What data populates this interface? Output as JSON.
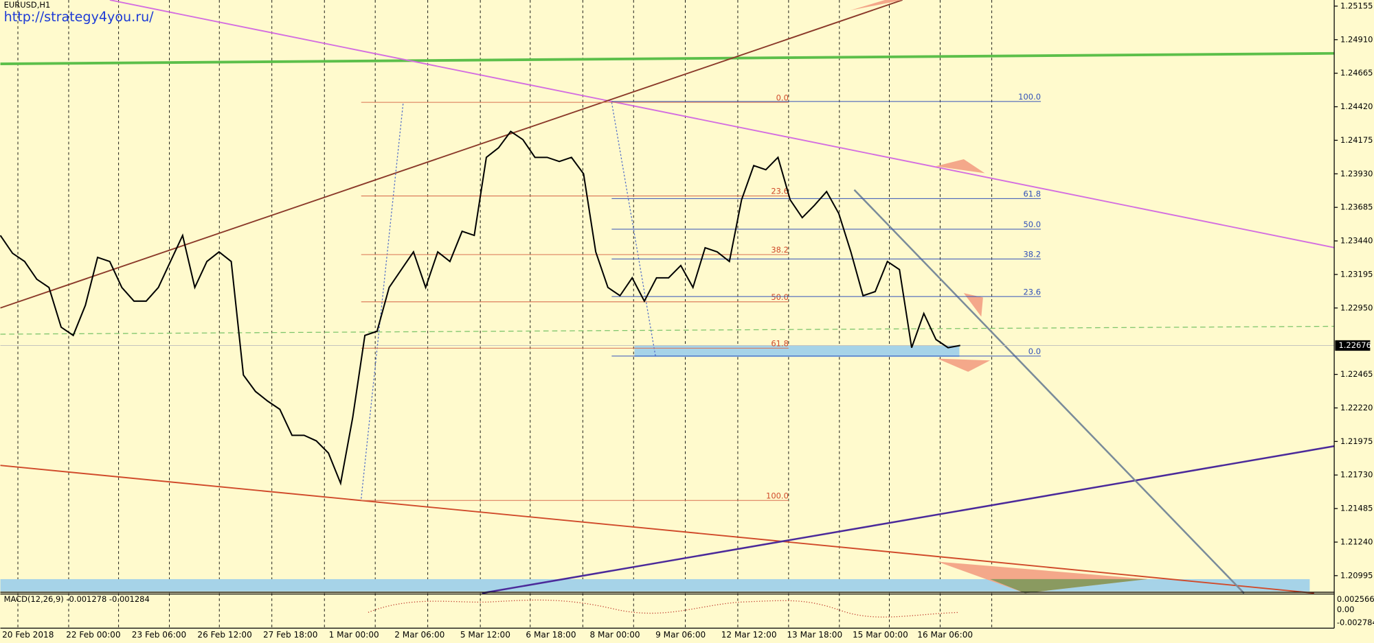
{
  "header": {
    "symbol": "EURUSD,H1",
    "link": "http://strategy4you.ru/"
  },
  "price_axis": {
    "ticks": [
      1.25155,
      {
        "value": 1.2491,
        "label": "1.24910"
      },
      1.24665,
      {
        "value": 1.2442,
        "label": "1.24420"
      },
      1.24175,
      {
        "value": 1.2393,
        "label": "1.23930"
      },
      1.23685,
      {
        "value": 1.2344,
        "label": "1.23440"
      },
      1.23195,
      {
        "value": 1.2295,
        "label": "1.22950"
      },
      1.22465,
      {
        "value": 1.2222,
        "label": "1.22220"
      },
      1.21975,
      {
        "value": 1.2173,
        "label": "1.21730"
      },
      1.21485,
      {
        "value": 1.2124,
        "label": "1.21240"
      },
      1.20995
    ],
    "current_price": 1.22676
  },
  "time_axis": {
    "labels": [
      "20 Feb 2018",
      "22 Feb 00:00",
      "23 Feb 06:00",
      "26 Feb 12:00",
      "27 Feb 18:00",
      "1 Mar 00:00",
      "2 Mar 06:00",
      "5 Mar 12:00",
      "6 Mar 18:00",
      "8 Mar 00:00",
      "9 Mar 06:00",
      "12 Mar 12:00",
      "13 Mar 18:00",
      "15 Mar 00:00",
      "16 Mar 06:00"
    ]
  },
  "price_path": [
    1.2348,
    1.2335,
    1.2329,
    1.2316,
    1.231,
    1.2281,
    1.2275,
    1.2297,
    1.2332,
    1.2329,
    1.231,
    1.23,
    1.23,
    1.231,
    1.2329,
    1.2348,
    1.231,
    1.2329,
    1.2336,
    1.2329,
    1.2246,
    1.2234,
    1.2227,
    1.2221,
    1.2202,
    1.2202,
    1.2198,
    1.2189,
    1.2167,
    1.2215,
    1.2275,
    1.2278,
    1.231,
    1.2323,
    1.2336,
    1.231,
    1.2336,
    1.2329,
    1.2351,
    1.2348,
    1.2405,
    1.2412,
    1.2424,
    1.2418,
    1.2405,
    1.2405,
    1.2402,
    1.2405,
    1.2393,
    1.2336,
    1.231,
    1.2304,
    1.2317,
    1.23,
    1.2317,
    1.2317,
    1.2326,
    1.231,
    1.2339,
    1.2336,
    1.2329,
    1.2374,
    1.2399,
    1.2396,
    1.2405,
    1.2374,
    1.2361,
    1.237,
    1.238,
    1.2364,
    1.2336,
    1.2304,
    1.2307,
    1.2329,
    1.2323,
    1.2266,
    1.2291,
    1.2272,
    1.2266,
    1.22676
  ],
  "fib_left": [
    "0.0",
    "23.6",
    "38.2",
    "50.0",
    "61.8",
    "100.0"
  ],
  "fib_right": [
    "100.0",
    "61.8",
    "50.0",
    "38.2",
    "23.6",
    "0.0"
  ],
  "macd": {
    "label": "MACD(12,26,9) -0.001278 -0.001284",
    "ticks": [
      "0.002566",
      "0.00",
      "-0.002784"
    ]
  }
}
